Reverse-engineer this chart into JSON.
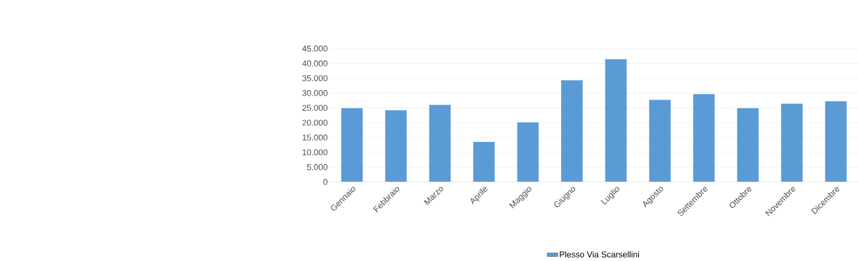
{
  "chart_data": {
    "type": "bar",
    "categories": [
      "Gennaio",
      "Febbraio",
      "Marzo",
      "Aprile",
      "Maggio",
      "Giugno",
      "Luglio",
      "Agosto",
      "Settembre",
      "Ottobre",
      "Novembre",
      "Dicembre"
    ],
    "series": [
      {
        "name": "Plesso Via Scarsellini",
        "color": "#5b9bd5",
        "values": [
          24900,
          24200,
          26000,
          13500,
          20100,
          34300,
          41400,
          27700,
          29600,
          24900,
          26400,
          27200
        ]
      }
    ],
    "ylim": [
      0,
      45000
    ],
    "yticks": [
      0,
      {
        "value": 5000,
        "label": "5.000"
      },
      {
        "value": 10000,
        "label": "10.000"
      },
      {
        "value": 15000,
        "label": "15.000"
      },
      {
        "value": 20000,
        "label": "20.000"
      },
      {
        "value": 25000,
        "label": "25.000"
      },
      {
        "value": 30000,
        "label": "30.000"
      },
      {
        "value": 35000,
        "label": "35.000"
      },
      {
        "value": 40000,
        "label": "40.000"
      },
      {
        "value": 45000,
        "label": "45.000"
      }
    ],
    "grid": "y",
    "legend": "bottom"
  }
}
